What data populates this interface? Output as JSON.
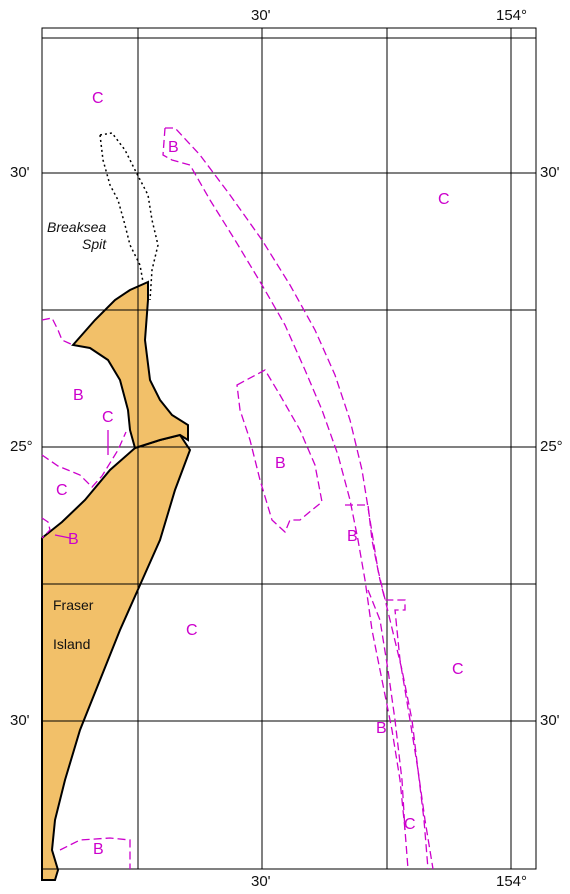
{
  "map": {
    "top_longitude_labels": [
      "30'",
      "154°"
    ],
    "bottom_longitude_labels": [
      "30'",
      "154°"
    ],
    "left_latitude_labels": [
      "30'",
      "25°",
      "30'"
    ],
    "right_latitude_labels": [
      "30'",
      "25°",
      "30'"
    ],
    "places": {
      "spit_line1": "Breaksea",
      "spit_line2": "Spit",
      "island_line1": "Fraser",
      "island_line2": "Island"
    },
    "zones": [
      "C",
      "B",
      "C",
      "B",
      "C",
      "C",
      "B",
      "B",
      "B",
      "B",
      "C",
      "C",
      "C",
      "B",
      "C",
      "B"
    ],
    "colors": {
      "land": "#f2c069",
      "zone_boundary": "#cc00cc",
      "grid": "#000000",
      "reef_outline": "#000000"
    }
  }
}
